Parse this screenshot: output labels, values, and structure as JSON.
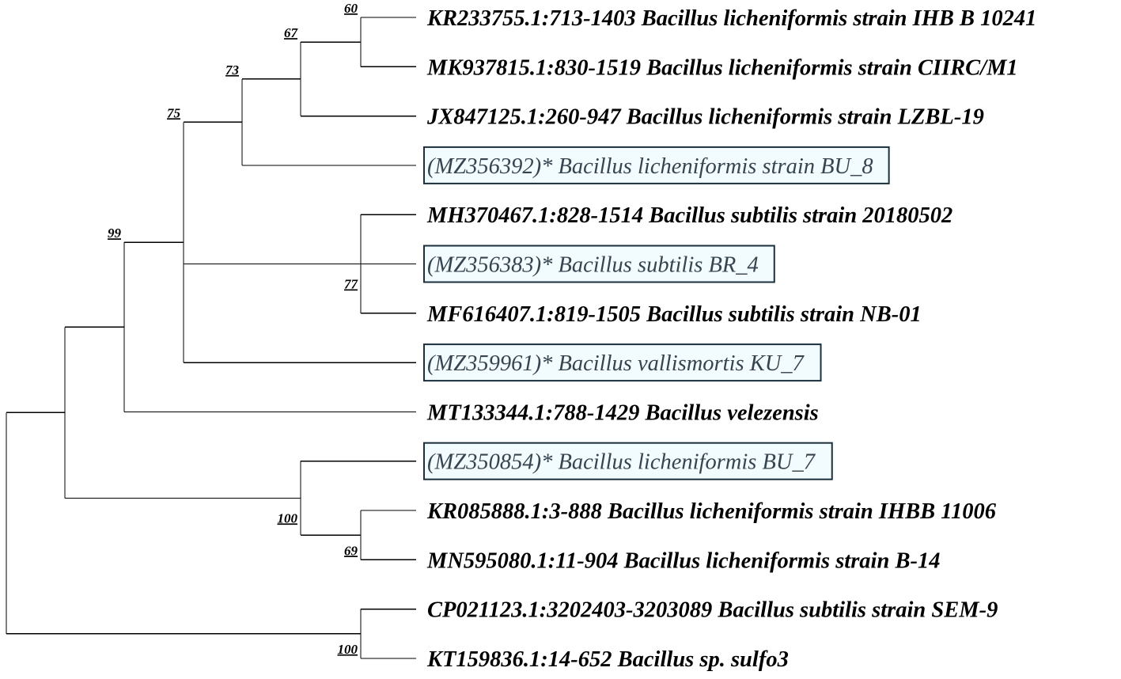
{
  "tree": {
    "leaves": [
      {
        "id": "L1",
        "label": "KR233755.1:713-1403 Bacillus licheniformis strain IHB B 10241",
        "highlight": false
      },
      {
        "id": "L2",
        "label": "MK937815.1:830-1519 Bacillus licheniformis strain CIIRC/M1",
        "highlight": false
      },
      {
        "id": "L3",
        "label": "JX847125.1:260-947 Bacillus licheniformis strain LZBL-19",
        "highlight": false
      },
      {
        "id": "L4",
        "label": "(MZ356392)* Bacillus licheniformis strain BU_8",
        "highlight": true
      },
      {
        "id": "L5",
        "label": "MH370467.1:828-1514 Bacillus subtilis strain 20180502",
        "highlight": false
      },
      {
        "id": "L6",
        "label": "(MZ356383)* Bacillus subtilis BR_4",
        "highlight": true
      },
      {
        "id": "L7",
        "label": "MF616407.1:819-1505 Bacillus subtilis strain NB-01",
        "highlight": false
      },
      {
        "id": "L8",
        "label": "(MZ359961)* Bacillus vallismortis KU_7",
        "highlight": true
      },
      {
        "id": "L9",
        "label": "MT133344.1:788-1429 Bacillus velezensis",
        "highlight": false
      },
      {
        "id": "L10",
        "label": "(MZ350854)* Bacillus licheniformis BU_7",
        "highlight": true
      },
      {
        "id": "L11",
        "label": "KR085888.1:3-888 Bacillus licheniformis strain IHBB 11006",
        "highlight": false
      },
      {
        "id": "L12",
        "label": "MN595080.1:11-904 Bacillus licheniformis strain B-14",
        "highlight": false
      },
      {
        "id": "L13",
        "label": "CP021123.1:3202403-3203089 Bacillus subtilis strain SEM-9",
        "highlight": false
      },
      {
        "id": "L14",
        "label": "KT159836.1:14-652 Bacillus sp. sulfo3",
        "highlight": false
      }
    ],
    "clades": [
      {
        "id": "c60",
        "support": "60",
        "children": [
          "L1",
          "L2"
        ]
      },
      {
        "id": "c67",
        "support": "67",
        "children": [
          "c60",
          "L3"
        ]
      },
      {
        "id": "c73",
        "support": "73",
        "children": [
          "c67",
          "L4"
        ]
      },
      {
        "id": "c77",
        "support": "77",
        "children": [
          "L5",
          "L6",
          "L7"
        ]
      },
      {
        "id": "c75",
        "support": "75",
        "children": [
          "c73",
          "c77",
          "L8"
        ]
      },
      {
        "id": "c99",
        "support": "99",
        "children": [
          "c75",
          "L9"
        ]
      },
      {
        "id": "c69",
        "support": "69",
        "children": [
          "L11",
          "L12"
        ]
      },
      {
        "id": "c100a",
        "support": "100",
        "children": [
          "L10",
          "c69"
        ]
      },
      {
        "id": "cA",
        "support": "",
        "children": [
          "c99",
          "c100a"
        ]
      },
      {
        "id": "c100b",
        "support": "100",
        "children": [
          "L13",
          "L14"
        ]
      },
      {
        "id": "root",
        "support": "",
        "children": [
          "cA",
          "c100b"
        ]
      }
    ]
  }
}
